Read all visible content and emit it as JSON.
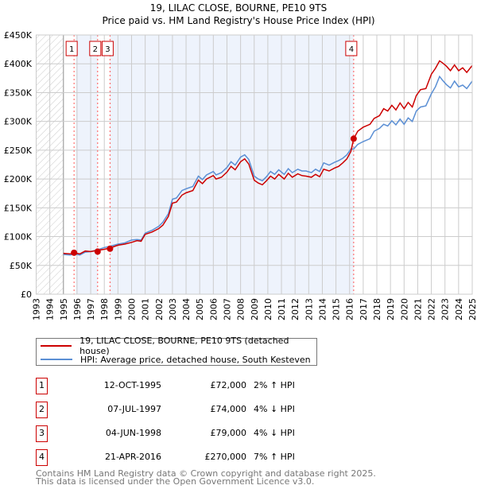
{
  "chart_data": {
    "type": "line",
    "title": "19, LILAC CLOSE, BOURNE, PE10 9TS",
    "subtitle": "Price paid vs. HM Land Registry's House Price Index (HPI)",
    "xlim": [
      1993,
      2025
    ],
    "ylim": [
      0,
      450000
    ],
    "x_ticks": [
      "1993",
      "1994",
      "1995",
      "1996",
      "1997",
      "1998",
      "1999",
      "2000",
      "2001",
      "2002",
      "2003",
      "2004",
      "2005",
      "2006",
      "2007",
      "2008",
      "2009",
      "2010",
      "2011",
      "2012",
      "2013",
      "2014",
      "2015",
      "2016",
      "2017",
      "2018",
      "2019",
      "2020",
      "2021",
      "2022",
      "2023",
      "2024",
      "2025"
    ],
    "y_ticks": [
      {
        "v": 0,
        "label": "£0"
      },
      {
        "v": 50000,
        "label": "£50K"
      },
      {
        "v": 100000,
        "label": "£100K"
      },
      {
        "v": 150000,
        "label": "£150K"
      },
      {
        "v": 200000,
        "label": "£200K"
      },
      {
        "v": 250000,
        "label": "£250K"
      },
      {
        "v": 300000,
        "label": "£300K"
      },
      {
        "v": 350000,
        "label": "£350K"
      },
      {
        "v": 400000,
        "label": "£400K"
      },
      {
        "v": 450000,
        "label": "£450K"
      }
    ],
    "grid": true,
    "no_data_before": 1995,
    "series": [
      {
        "name": "19, LILAC CLOSE, BOURNE, PE10 9TS (detached house)",
        "color": "#cc0000",
        "x": [
          1995,
          1995.5,
          1995.8,
          1996.2,
          1996.6,
          1997,
          1997.5,
          1998,
          1998.4,
          1999,
          1999.5,
          2000,
          2000.4,
          2000.7,
          2001,
          2001.5,
          2002,
          2002.3,
          2002.7,
          2003,
          2003.3,
          2003.7,
          2004,
          2004.5,
          2004.9,
          2005.2,
          2005.5,
          2006,
          2006.2,
          2006.6,
          2007,
          2007.3,
          2007.6,
          2008,
          2008.3,
          2008.6,
          2009,
          2009.3,
          2009.6,
          2009.9,
          2010.2,
          2010.5,
          2010.8,
          2011.2,
          2011.5,
          2011.8,
          2012.2,
          2012.5,
          2012.8,
          2013.2,
          2013.5,
          2013.8,
          2014.1,
          2014.5,
          2014.9,
          2015.2,
          2015.5,
          2015.8,
          2016.1,
          2016.3,
          2016.6,
          2017,
          2017.5,
          2017.8,
          2018.2,
          2018.5,
          2018.8,
          2019.1,
          2019.4,
          2019.7,
          2020,
          2020.3,
          2020.6,
          2020.9,
          2021.2,
          2021.6,
          2022,
          2022.3,
          2022.6,
          2022.8,
          2023.1,
          2023.4,
          2023.7,
          2024,
          2024.3,
          2024.6,
          2025
        ],
        "y": [
          71000,
          70000,
          72000,
          70000,
          75000,
          74000,
          76000,
          78000,
          80000,
          85000,
          87000,
          90000,
          93000,
          92000,
          104000,
          108000,
          114000,
          120000,
          135000,
          158000,
          160000,
          172000,
          176000,
          180000,
          198000,
          192000,
          200000,
          206000,
          200000,
          203000,
          212000,
          222000,
          216000,
          230000,
          235000,
          226000,
          198000,
          193000,
          190000,
          197000,
          205000,
          200000,
          208000,
          200000,
          210000,
          203000,
          209000,
          206000,
          205000,
          203000,
          208000,
          204000,
          217000,
          214000,
          219000,
          222000,
          228000,
          235000,
          248000,
          270000,
          283000,
          290000,
          295000,
          305000,
          310000,
          322000,
          318000,
          328000,
          320000,
          332000,
          322000,
          333000,
          325000,
          345000,
          355000,
          357000,
          382000,
          392000,
          405000,
          402000,
          396000,
          388000,
          398000,
          388000,
          393000,
          385000,
          397000
        ]
      },
      {
        "name": "HPI: Average price, detached house, South Kesteven",
        "color": "#5b8fd4",
        "x": [
          1995,
          1995.5,
          1995.8,
          1996.2,
          1996.6,
          1997,
          1997.5,
          1998,
          1998.4,
          1999,
          1999.5,
          2000,
          2000.4,
          2000.7,
          2001,
          2001.5,
          2002,
          2002.3,
          2002.7,
          2003,
          2003.3,
          2003.7,
          2004,
          2004.5,
          2004.9,
          2005.2,
          2005.5,
          2006,
          2006.2,
          2006.6,
          2007,
          2007.3,
          2007.6,
          2008,
          2008.3,
          2008.6,
          2009,
          2009.3,
          2009.6,
          2009.9,
          2010.2,
          2010.5,
          2010.8,
          2011.2,
          2011.5,
          2011.8,
          2012.2,
          2012.5,
          2012.8,
          2013.2,
          2013.5,
          2013.8,
          2014.1,
          2014.5,
          2014.9,
          2015.2,
          2015.5,
          2015.8,
          2016.1,
          2016.3,
          2016.6,
          2017,
          2017.5,
          2017.8,
          2018.2,
          2018.5,
          2018.8,
          2019.1,
          2019.4,
          2019.7,
          2020,
          2020.3,
          2020.6,
          2020.9,
          2021.2,
          2021.6,
          2022,
          2022.3,
          2022.6,
          2022.8,
          2023.1,
          2023.4,
          2023.7,
          2024,
          2024.3,
          2024.6,
          2025
        ],
        "y": [
          69000,
          68000,
          70000,
          68000,
          73000,
          74000,
          77000,
          81000,
          83000,
          87000,
          89000,
          94000,
          95000,
          94000,
          106000,
          111000,
          118000,
          125000,
          140000,
          165000,
          167000,
          180000,
          183000,
          187000,
          205000,
          199000,
          207000,
          213000,
          207000,
          211000,
          220000,
          230000,
          224000,
          238000,
          242000,
          234000,
          205000,
          200000,
          197000,
          204000,
          213000,
          208000,
          216000,
          208000,
          218000,
          211000,
          217000,
          214000,
          214000,
          211000,
          217000,
          213000,
          228000,
          224000,
          229000,
          232000,
          236000,
          242000,
          252000,
          252000,
          260000,
          265000,
          270000,
          283000,
          288000,
          295000,
          292000,
          301000,
          294000,
          304000,
          295000,
          306000,
          300000,
          318000,
          325000,
          327000,
          348000,
          360000,
          378000,
          372000,
          364000,
          358000,
          370000,
          360000,
          363000,
          357000,
          370000
        ]
      }
    ],
    "sales": [
      {
        "n": "1",
        "x": 1995.78,
        "y": 72000,
        "date": "12-OCT-1995",
        "price": "£72,000",
        "hpi": "2% ↑ HPI"
      },
      {
        "n": "2",
        "x": 1997.51,
        "y": 74000,
        "date": "07-JUL-1997",
        "price": "£74,000",
        "hpi": "4% ↓ HPI"
      },
      {
        "n": "3",
        "x": 1998.42,
        "y": 79000,
        "date": "04-JUN-1998",
        "price": "£79,000",
        "hpi": "4% ↓ HPI"
      },
      {
        "n": "4",
        "x": 2016.3,
        "y": 270000,
        "date": "21-APR-2016",
        "price": "£270,000",
        "hpi": "7% ↑ HPI"
      }
    ]
  },
  "legend": {
    "property": "19, LILAC CLOSE, BOURNE, PE10 9TS (detached house)",
    "hpi": "HPI: Average price, detached house, South Kesteven"
  },
  "footer": {
    "line1": "Contains HM Land Registry data © Crown copyright and database right 2025.",
    "line2": "This data is licensed under the Open Government Licence v3.0."
  }
}
